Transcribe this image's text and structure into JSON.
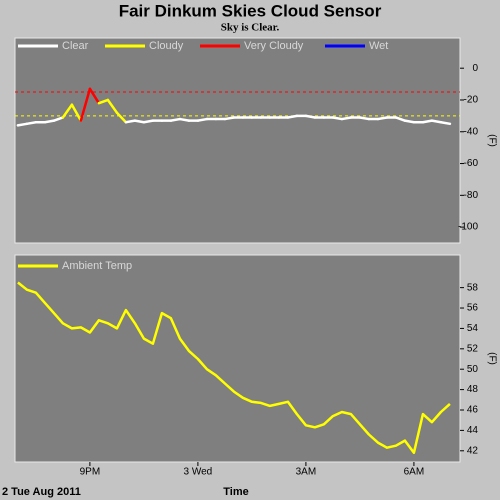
{
  "title": "Fair Dinkum Skies Cloud Sensor",
  "subtitle": "Sky is Clear.",
  "chart_data": [
    {
      "type": "line",
      "x": [
        19.0,
        19.25,
        19.5,
        19.75,
        20.0,
        20.25,
        20.5,
        20.75,
        21.0,
        21.25,
        21.5,
        21.75,
        22.0,
        22.25,
        22.5,
        22.75,
        23.0,
        23.25,
        23.5,
        23.75,
        24.0,
        24.25,
        24.5,
        24.75,
        25.0,
        25.25,
        25.5,
        25.75,
        26.0,
        26.25,
        26.5,
        26.75,
        27.0,
        27.25,
        27.5,
        27.75,
        28.0,
        28.25,
        28.5,
        28.75,
        29.0,
        29.25,
        29.5,
        29.75,
        30.0,
        30.25,
        30.5,
        30.75,
        31.0
      ],
      "values": [
        -36,
        -35,
        -34,
        -34,
        -33,
        -31,
        -23,
        -33,
        -13,
        -22,
        -20,
        -28,
        -34,
        -33,
        -34,
        -33,
        -33,
        -33,
        -32,
        -33,
        -33,
        -32,
        -32,
        -32,
        -31,
        -31,
        -31,
        -31,
        -31,
        -31,
        -31,
        -30,
        -30,
        -31,
        -31,
        -31,
        -32,
        -31,
        -31,
        -32,
        -32,
        -31,
        -31,
        -33,
        -34,
        -34,
        -33,
        -34,
        -35
      ],
      "legend": [
        {
          "name": "Clear",
          "color": "#ffffff"
        },
        {
          "name": "Cloudy",
          "color": "#ffff00"
        },
        {
          "name": "Very Cloudy",
          "color": "#ff0000"
        },
        {
          "name": "Wet",
          "color": "#0000ff"
        }
      ],
      "thresholds": [
        {
          "value": -30,
          "color": "#ffff00"
        },
        {
          "value": -15,
          "color": "#ff0000"
        }
      ],
      "y_label": "(F)",
      "xlim": [
        18.92,
        31.28
      ],
      "ylim": [
        -110,
        19
      ],
      "yticks": [
        0,
        -20,
        -40,
        -60,
        -80,
        -100
      ]
    },
    {
      "type": "line",
      "x": [
        19.0,
        19.25,
        19.5,
        19.75,
        20.0,
        20.25,
        20.5,
        20.75,
        21.0,
        21.25,
        21.5,
        21.75,
        22.0,
        22.25,
        22.5,
        22.75,
        23.0,
        23.25,
        23.5,
        23.75,
        24.0,
        24.25,
        24.5,
        24.75,
        25.0,
        25.25,
        25.5,
        25.75,
        26.0,
        26.25,
        26.5,
        26.75,
        27.0,
        27.25,
        27.5,
        27.75,
        28.0,
        28.25,
        28.5,
        28.75,
        29.0,
        29.25,
        29.5,
        29.75,
        30.0,
        30.25,
        30.5,
        30.75,
        31.0
      ],
      "series": [
        {
          "name": "Ambient Temp",
          "color": "#ffff00",
          "values": [
            58.5,
            57.8,
            57.5,
            56.5,
            55.5,
            54.5,
            54.0,
            54.1,
            53.6,
            54.8,
            54.5,
            54.0,
            55.8,
            54.5,
            53.0,
            52.5,
            55.5,
            55.0,
            53.0,
            51.8,
            51.0,
            50.0,
            49.4,
            48.6,
            47.8,
            47.2,
            46.8,
            46.7,
            46.4,
            46.6,
            46.8,
            45.6,
            44.5,
            44.3,
            44.6,
            45.4,
            45.8,
            45.6,
            44.6,
            43.6,
            42.8,
            42.3,
            42.5,
            43.0,
            41.8,
            45.6,
            44.8,
            45.8,
            46.6
          ]
        }
      ],
      "y_label": "(F)",
      "x_label": "Time",
      "date_label": "2 Tue Aug 2011",
      "xlim": [
        18.92,
        31.28
      ],
      "ylim": [
        40.9,
        61.2
      ],
      "yticks": [
        42,
        44,
        46,
        48,
        50,
        52,
        54,
        56,
        58
      ],
      "xticks": [
        {
          "value": 21,
          "label": "9PM"
        },
        {
          "value": 24,
          "label": "3 Wed"
        },
        {
          "value": 27,
          "label": "3AM"
        },
        {
          "value": 30,
          "label": "6AM"
        }
      ]
    }
  ]
}
